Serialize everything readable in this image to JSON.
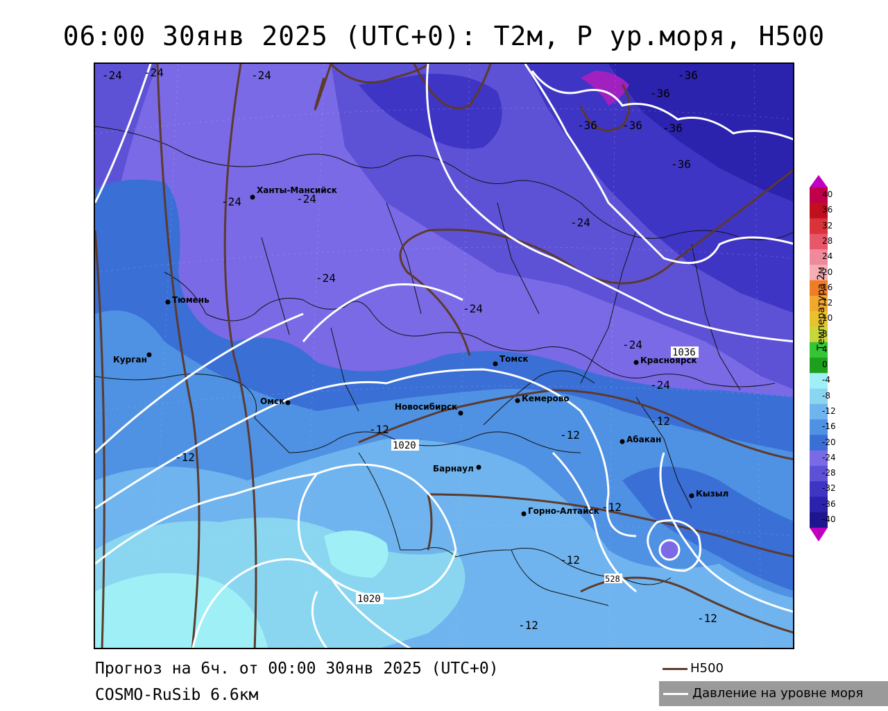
{
  "header": {
    "title": "06:00 30янв 2025 (UTC+0): Т2м, P ур.моря, H500"
  },
  "footer": {
    "forecast_line": "Прогноз на 6ч. от 00:00 30янв 2025 (UTC+0)",
    "model_line": "COSMO-RuSib 6.6км"
  },
  "legend": {
    "h500_label": "H500",
    "pressure_label": "Давление на уровне моря",
    "h500_color": "#5c3a2c",
    "pressure_color": "#ffffff"
  },
  "colorbar": {
    "title": "Температура 2м",
    "ticks": [
      "40",
      "36",
      "32",
      "28",
      "24",
      "20",
      "16",
      "12",
      "10",
      "8",
      "4",
      "0",
      "-4",
      "-8",
      "-12",
      "-16",
      "-20",
      "-24",
      "-28",
      "-32",
      "-36",
      "-40"
    ],
    "colors": [
      "#c0004a",
      "#c20f1f",
      "#d9343a",
      "#e8566a",
      "#ef8a9a",
      "#f4aeb4",
      "#f07c26",
      "#f2a72f",
      "#e8c22c",
      "#c8d63a",
      "#34c434",
      "#1ea01e",
      "#9ff0f6",
      "#8ad6f0",
      "#6fb4ee",
      "#4f91e2",
      "#3a6fd6",
      "#7a6ae6",
      "#5d52d6",
      "#3f35c4",
      "#2b22ad",
      "#1d168f"
    ],
    "cap_color": "#c000c0"
  },
  "cities": [
    {
      "name": "Ханты-Мансийск"
    },
    {
      "name": "Тюмень"
    },
    {
      "name": "Курган"
    },
    {
      "name": "Омск"
    },
    {
      "name": "Новосибирск"
    },
    {
      "name": "Томск"
    },
    {
      "name": "Кемерово"
    },
    {
      "name": "Красноярск"
    },
    {
      "name": "Абакан"
    },
    {
      "name": "Барнаул"
    },
    {
      "name": "Горно-Алтайск"
    },
    {
      "name": "Кызыл"
    }
  ],
  "isotherm_labels": [
    "-24",
    "-24",
    "-24",
    "-24",
    "-24",
    "-24",
    "-24",
    "-24",
    "-24",
    "-24",
    "-36",
    "-36",
    "-36",
    "-36",
    "-36",
    "-36",
    "-12",
    "-12",
    "-12",
    "-12",
    "-12",
    "-12",
    "-12",
    "-12"
  ],
  "isobar_labels": [
    "1020",
    "1020",
    "1036"
  ],
  "h500_labels": [
    "528"
  ]
}
